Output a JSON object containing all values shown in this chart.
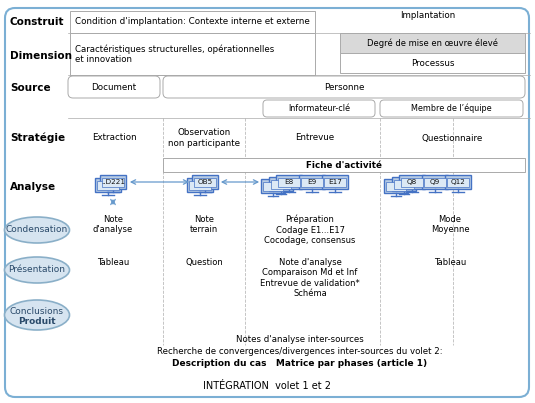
{
  "bg_color": "#ffffff",
  "border_color": "#7bafd4",
  "construit_text1": "Condition d'implantation: Contexte interne et externe",
  "construit_text2": "Implantation",
  "dimension_box1": "Caractéristiques structurelles, opérationnelles\net innovation",
  "dimension_box2a": "Degré de mise en œuvre élevé",
  "dimension_box2b": "Processus",
  "source_doc": "Document",
  "source_per": "Personne",
  "source_info": "Informateur-clé",
  "source_membre": "Membre de l’équipe",
  "strat1": "Extraction",
  "strat2": "Observation\nnon participante",
  "strat3": "Entrevue",
  "strat4": "Questionnaire",
  "fiche": "Fiche d'activité",
  "doc_label": "..D221",
  "obs_label": "OB5",
  "entrevue_labels": [
    "E8",
    "E9",
    "E17"
  ],
  "questionnaire_labels": [
    "Q8",
    "Q9",
    "Q12"
  ],
  "analyse_note": "Note\nd'analyse",
  "analyse_note2": "Note\nterrain",
  "analyse_prep": "Préparation\nCodage E1...E17\nCocodage, consensus",
  "analyse_mode": "Mode\nMoyenne",
  "pres_text1": "Tableau",
  "pres_text2": "Question",
  "pres_text3": "Note d'analyse\nComparaison Md et Inf\nEntrevue de validation*\nSchéma",
  "pres_text4": "Tableau",
  "inter_sources": "Notes d'analyse inter-sources",
  "convergences": "Recherche de convergences/divergences inter-sources du volet 2:",
  "description": "Description du cas   Matrice par phases (article 1)",
  "integration": "INTÉGRATION  volet 1 et 2",
  "monitor_color": "#b8cce4",
  "monitor_border": "#4472c4",
  "monitor_inner": "#dce9f5",
  "ellipse_color": "#d6e4f0",
  "ellipse_border": "#8aafc8",
  "label_color": "#000000",
  "bold_color": "#000000",
  "gray_box": "#d9d9d9",
  "line_color": "#aaaaaa",
  "dashed_color": "#bbbbbb",
  "arrow_color": "#6699cc"
}
